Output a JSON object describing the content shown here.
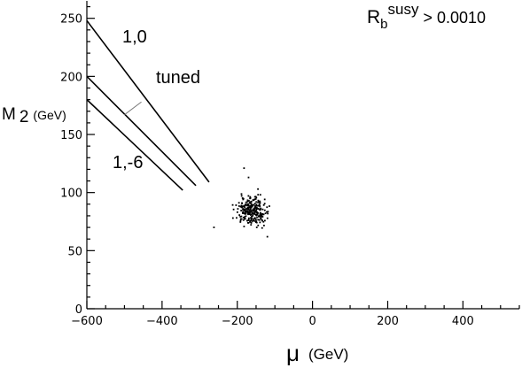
{
  "chart_data": {
    "type": "scatter",
    "title_main": "R",
    "title_sub": "b",
    "title_sup": "susy",
    "title_rest": " > 0.0010",
    "ylabel_main": "M",
    "ylabel_sub": "2",
    "ylabel_unit": "(GeV)",
    "xlabel_symbol": "μ",
    "xlabel_unit": "(GeV)",
    "xlim": [
      -600,
      550
    ],
    "ylim": [
      0,
      265
    ],
    "xticks_major": [
      -600,
      -400,
      -200,
      0,
      200,
      400
    ],
    "xtick_labels": [
      "−600",
      "−400",
      "−200",
      "0",
      "200",
      "400"
    ],
    "yticks_major": [
      0,
      50,
      100,
      150,
      200,
      250
    ],
    "ytick_labels": [
      "0",
      "50",
      "100",
      "150",
      "200",
      "250"
    ],
    "minor_step_x": 50,
    "minor_step_y": 10,
    "grid": false,
    "lines": [
      {
        "name": "1,0",
        "x": [
          -600,
          -275
        ],
        "y": [
          248,
          109
        ]
      },
      {
        "name": "",
        "x": [
          -600,
          -310
        ],
        "y": [
          200,
          106
        ]
      },
      {
        "name": "1,-6",
        "x": [
          -600,
          -345
        ],
        "y": [
          180,
          102
        ]
      }
    ],
    "line_labels": [
      {
        "text": "1,0",
        "x": -475,
        "y": 227
      },
      {
        "text": "tuned",
        "x": -430,
        "y": 196
      },
      {
        "text": "1,-6",
        "x": -515,
        "y": 124
      }
    ],
    "tuned_pointer": {
      "x": [
        -500,
        -455
      ],
      "y": [
        167,
        178
      ]
    },
    "scatter_center": [
      -160,
      84
    ],
    "scatter_spread": [
      38,
      11
    ],
    "scatter_count": 260,
    "outliers": [
      {
        "x": -182,
        "y": 121
      },
      {
        "x": -170,
        "y": 113
      },
      {
        "x": -145,
        "y": 103
      },
      {
        "x": -262,
        "y": 70
      },
      {
        "x": -120,
        "y": 62
      }
    ]
  }
}
